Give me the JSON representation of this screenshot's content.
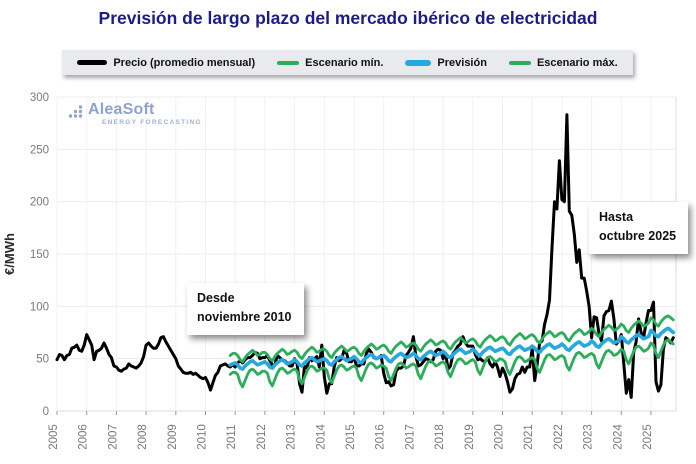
{
  "title": "Previsión de largo plazo del mercado ibérico de electricidad",
  "logo": {
    "name": "AleaSoft",
    "subtitle": "ENERGY FORECASTING"
  },
  "legend": {
    "items": [
      {
        "label": "Precio (promedio mensual)",
        "color": "#000000"
      },
      {
        "label": "Escenario mín.",
        "color": "#2bae5c"
      },
      {
        "label": "Previsión",
        "color": "#25a9e0"
      },
      {
        "label": "Escenario máx.",
        "color": "#2bae5c"
      }
    ]
  },
  "annotations": {
    "desde": {
      "line1": "Desde",
      "line2": "noviembre 2010"
    },
    "hasta": {
      "line1": "Hasta",
      "line2": "octubre 2025"
    }
  },
  "colors": {
    "title": "#1b1b8c",
    "green": "#2bae5c",
    "blue": "#25a9e0",
    "black": "#000000",
    "axis_text": "#7a7a7a",
    "grid": "#ececec",
    "legend_bg": "#e9eaee",
    "logo_blue": "#8ea3d4"
  },
  "chart_data": {
    "type": "line",
    "title": "Previsión de largo plazo del mercado ibérico de electricidad",
    "xlabel": "",
    "ylabel": "€/MWh",
    "ylim": [
      0,
      300
    ],
    "yticks": [
      0,
      50,
      100,
      150,
      200,
      250,
      300
    ],
    "xticks": [
      2005,
      2006,
      2007,
      2008,
      2009,
      2010,
      2011,
      2012,
      2013,
      2014,
      2015,
      2016,
      2017,
      2018,
      2019,
      2020,
      2021,
      2022,
      2023,
      2024,
      2025
    ],
    "grid": true,
    "legend_position": "top",
    "x_unit": "monthly",
    "series": [
      {
        "name": "Precio (promedio mensual)",
        "color": "#000000",
        "width": 3,
        "start": "2005-01",
        "values": [
          49,
          54,
          53,
          49,
          53,
          54,
          60,
          61,
          63,
          58,
          57,
          63,
          73,
          68,
          63,
          49,
          57,
          58,
          60,
          65,
          60,
          54,
          51,
          43,
          42,
          39,
          38,
          40,
          41,
          45,
          43,
          42,
          41,
          43,
          46,
          52,
          63,
          65,
          62,
          60,
          60,
          64,
          70,
          71,
          66,
          62,
          58,
          54,
          50,
          43,
          40,
          37,
          36,
          36,
          37,
          35,
          36,
          34,
          32,
          31,
          32,
          27,
          20,
          27,
          34,
          37,
          43,
          44,
          45,
          43,
          42,
          44,
          42,
          46,
          48,
          46,
          49,
          51,
          51,
          53,
          56,
          55,
          50,
          51,
          51,
          53,
          48,
          44,
          44,
          53,
          51,
          49,
          48,
          46,
          43,
          43,
          50,
          45,
          26,
          18,
          43,
          41,
          51,
          48,
          50,
          52,
          42,
          63,
          33,
          17,
          26,
          26,
          42,
          51,
          48,
          50,
          58,
          55,
          47,
          47,
          52,
          43,
          43,
          45,
          45,
          55,
          59,
          56,
          51,
          50,
          51,
          53,
          36,
          27,
          28,
          24,
          25,
          38,
          41,
          41,
          43,
          53,
          56,
          60,
          71,
          52,
          43,
          44,
          47,
          50,
          49,
          47,
          49,
          57,
          59,
          58,
          50,
          55,
          40,
          43,
          55,
          58,
          62,
          64,
          71,
          65,
          62,
          62,
          62,
          54,
          49,
          50,
          48,
          47,
          51,
          45,
          42,
          47,
          42,
          33,
          41,
          36,
          28,
          18,
          21,
          31,
          35,
          36,
          42,
          37,
          42,
          42,
          60,
          29,
          45,
          65,
          67,
          83,
          92,
          106,
          156,
          200,
          193,
          239,
          202,
          200,
          283,
          191,
          187,
          169,
          142,
          154,
          127,
          127,
          115,
          100,
          70,
          90,
          89,
          74,
          67,
          91,
          95,
          96,
          105,
          88,
          64,
          67,
          73,
          45,
          17,
          30,
          13,
          56,
          66,
          88,
          75,
          70,
          84,
          96,
          96,
          104,
          28,
          19,
          25,
          59,
          70,
          68,
          65,
          70
        ]
      },
      {
        "name": "Escenario mín.",
        "color": "#2bae5c",
        "width": 2.8,
        "start": "2010-11",
        "values": [
          35,
          37,
          37,
          35,
          27,
          23,
          29,
          35,
          39,
          40,
          38,
          35,
          36,
          38,
          38,
          36,
          28,
          24,
          30,
          36,
          40,
          41,
          39,
          36,
          37,
          39,
          40,
          38,
          30,
          26,
          32,
          38,
          42,
          43,
          41,
          38,
          39,
          41,
          41,
          39,
          31,
          27,
          33,
          39,
          43,
          44,
          42,
          39,
          40,
          42,
          43,
          41,
          33,
          29,
          35,
          41,
          45,
          46,
          44,
          41,
          42,
          44,
          43,
          41,
          33,
          29,
          35,
          41,
          45,
          46,
          44,
          41,
          42,
          44,
          45,
          43,
          35,
          31,
          37,
          43,
          47,
          48,
          46,
          43,
          44,
          46,
          47,
          45,
          37,
          33,
          39,
          45,
          49,
          50,
          48,
          45,
          46,
          48,
          49,
          47,
          39,
          35,
          41,
          47,
          51,
          52,
          50,
          47,
          48,
          50,
          49,
          47,
          39,
          35,
          41,
          47,
          51,
          52,
          50,
          47,
          48,
          50,
          51,
          49,
          41,
          37,
          43,
          49,
          53,
          54,
          52,
          49,
          50,
          52,
          53,
          51,
          43,
          39,
          45,
          51,
          55,
          56,
          54,
          51,
          52,
          54,
          55,
          53,
          45,
          41,
          47,
          53,
          57,
          58,
          56,
          53,
          54,
          56,
          59,
          57,
          49,
          45,
          51,
          57,
          61,
          62,
          60,
          57,
          58,
          60,
          65,
          63,
          55,
          51,
          57,
          63,
          67,
          68,
          66,
          64
        ]
      },
      {
        "name": "Previsión",
        "color": "#25a9e0",
        "width": 3.6,
        "start": "2010-11",
        "values": [
          44,
          45,
          46,
          44,
          41,
          40,
          43,
          45,
          47,
          48,
          46,
          44,
          45,
          46,
          47,
          45,
          42,
          41,
          44,
          46,
          48,
          49,
          47,
          45,
          46,
          47,
          49,
          47,
          44,
          43,
          46,
          48,
          50,
          51,
          49,
          47,
          48,
          49,
          50,
          48,
          45,
          44,
          47,
          49,
          51,
          52,
          50,
          48,
          49,
          50,
          52,
          50,
          47,
          46,
          49,
          51,
          53,
          54,
          52,
          50,
          51,
          52,
          53,
          51,
          48,
          47,
          50,
          52,
          54,
          55,
          53,
          51,
          52,
          53,
          55,
          53,
          50,
          49,
          52,
          54,
          56,
          57,
          55,
          53,
          54,
          55,
          57,
          55,
          52,
          51,
          54,
          56,
          58,
          59,
          57,
          55,
          56,
          57,
          59,
          57,
          54,
          53,
          56,
          58,
          60,
          61,
          59,
          57,
          58,
          59,
          60,
          58,
          55,
          54,
          57,
          59,
          61,
          62,
          60,
          58,
          59,
          60,
          62,
          60,
          57,
          56,
          59,
          61,
          63,
          64,
          62,
          60,
          61,
          62,
          64,
          62,
          59,
          58,
          61,
          63,
          65,
          66,
          64,
          62,
          63,
          64,
          67,
          65,
          62,
          61,
          64,
          66,
          68,
          69,
          67,
          65,
          66,
          67,
          71,
          69,
          66,
          65,
          68,
          70,
          72,
          73,
          71,
          69,
          70,
          71,
          77,
          75,
          72,
          71,
          74,
          76,
          78,
          79,
          77,
          75
        ]
      },
      {
        "name": "Escenario máx.",
        "color": "#2bae5c",
        "width": 2.8,
        "start": "2010-11",
        "values": [
          53,
          55,
          55,
          53,
          49,
          47,
          51,
          54,
          56,
          58,
          56,
          53,
          54,
          56,
          56,
          54,
          50,
          48,
          52,
          55,
          57,
          59,
          57,
          54,
          55,
          57,
          58,
          56,
          52,
          50,
          54,
          57,
          59,
          61,
          59,
          56,
          57,
          59,
          59,
          57,
          53,
          51,
          55,
          58,
          60,
          62,
          60,
          57,
          58,
          60,
          61,
          59,
          55,
          53,
          57,
          60,
          62,
          64,
          62,
          59,
          60,
          62,
          63,
          61,
          57,
          55,
          59,
          62,
          64,
          66,
          64,
          61,
          62,
          64,
          65,
          63,
          59,
          57,
          61,
          64,
          66,
          68,
          66,
          63,
          64,
          66,
          67,
          65,
          61,
          59,
          63,
          66,
          68,
          70,
          68,
          65,
          66,
          68,
          69,
          67,
          63,
          61,
          65,
          68,
          70,
          72,
          70,
          67,
          68,
          70,
          71,
          69,
          65,
          63,
          67,
          70,
          72,
          74,
          72,
          69,
          70,
          72,
          73,
          71,
          67,
          65,
          69,
          72,
          74,
          76,
          74,
          71,
          72,
          74,
          75,
          73,
          69,
          67,
          71,
          74,
          76,
          78,
          76,
          73,
          74,
          76,
          79,
          77,
          73,
          71,
          75,
          78,
          80,
          82,
          80,
          77,
          78,
          80,
          83,
          81,
          77,
          75,
          79,
          82,
          84,
          86,
          84,
          81,
          82,
          84,
          89,
          87,
          83,
          81,
          85,
          88,
          90,
          91,
          89,
          87
        ]
      }
    ]
  }
}
